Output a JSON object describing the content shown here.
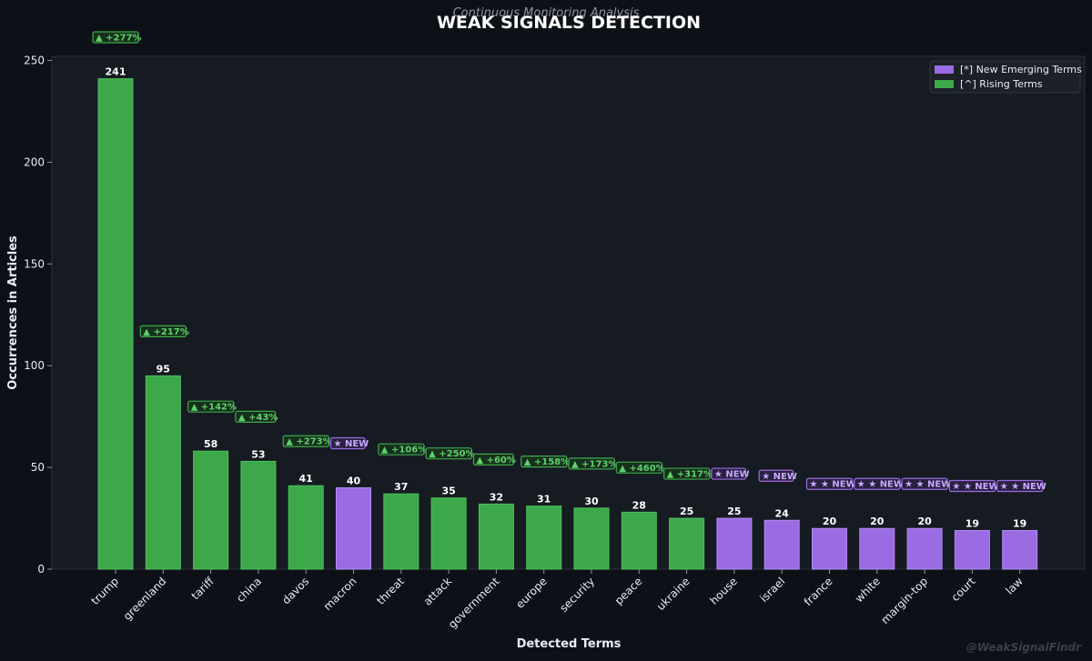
{
  "chart_data": {
    "type": "bar",
    "title": "WEAK SIGNALS DETECTION",
    "subtitle": "Continuous Monitoring Analysis",
    "xlabel": "Detected Terms",
    "ylabel": "Occurrences in Articles",
    "ylim": [
      0,
      252
    ],
    "yticks": [
      0,
      50,
      100,
      150,
      200,
      250
    ],
    "grid": false,
    "legend_position": "top-right",
    "categories": [
      "trump",
      "greenland",
      "tariff",
      "china",
      "davos",
      "macron",
      "threat",
      "attack",
      "government",
      "europe",
      "security",
      "peace",
      "ukraine",
      "house",
      "israel",
      "france",
      "white",
      "margin-top",
      "court",
      "law"
    ],
    "values": [
      241,
      95,
      58,
      53,
      41,
      40,
      37,
      35,
      32,
      31,
      30,
      28,
      25,
      25,
      24,
      20,
      20,
      20,
      19,
      19
    ],
    "value_labels": [
      "241",
      "95",
      "58",
      "53",
      "41",
      "40",
      "37",
      "35",
      "32",
      "31",
      "30",
      "28",
      "25",
      "25",
      "24",
      "20",
      "20",
      "20",
      "19",
      "19"
    ],
    "status": [
      "rising",
      "rising",
      "rising",
      "rising",
      "rising",
      "new",
      "rising",
      "rising",
      "rising",
      "rising",
      "rising",
      "rising",
      "rising",
      "new",
      "new",
      "new",
      "new",
      "new",
      "new",
      "new"
    ],
    "badges": [
      "▲ +277%",
      "▲ +217%",
      "▲ +142%",
      "▲ +43%",
      "▲ +273%",
      "★ NEW",
      "▲ +106%",
      "▲ +250%",
      "▲ +60%",
      "▲ +158%",
      "▲ +173%",
      "▲ +460%",
      "▲ +317%",
      "★ NEW",
      "★ NEW",
      "★ ★ NEW",
      "★ ★ NEW",
      "★ ★ NEW",
      "★ ★ NEW",
      "★ ★ NEW"
    ],
    "series": [
      {
        "name": "[*] New Emerging Terms",
        "key": "new",
        "color": "#9b6be3"
      },
      {
        "name": "[^] Rising Terms",
        "key": "rising",
        "color": "#3ca84a"
      }
    ],
    "watermark": "@WeakSignalFindr"
  },
  "colors": {
    "background": "#0d1117",
    "plot_background": "#161b22",
    "rising": "#3ca84a",
    "rising_edge": "#4cc25a",
    "new": "#9b6be3",
    "new_edge": "#b28cf0",
    "text": "#e6edf3",
    "subtitle": "#8b949e",
    "watermark": "#3a4048"
  }
}
